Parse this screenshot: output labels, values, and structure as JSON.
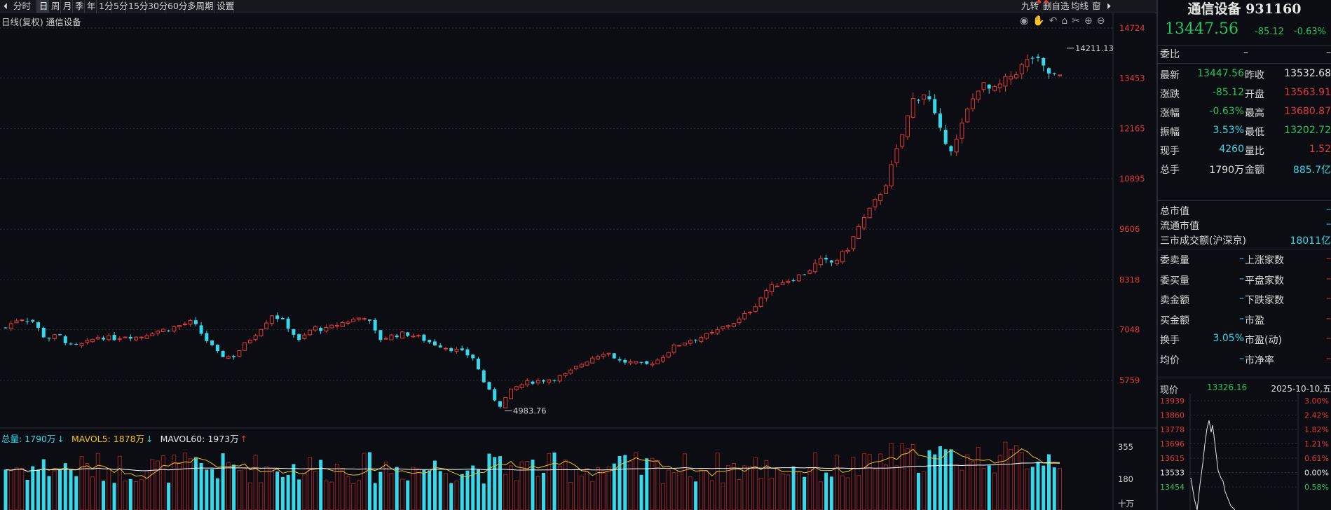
{
  "colors": {
    "up": "#e0393b",
    "down": "#36d8ec",
    "green": "#22c55e",
    "bg": "#0b0d12",
    "grid": "#2b2f38",
    "ma5": "#f0c020",
    "ma60": "#ffffff"
  },
  "toolbar": {
    "periods": [
      "分时",
      "日",
      "周",
      "月",
      "季",
      "年",
      "1分",
      "5分",
      "15分",
      "30分",
      "60分",
      "多周期",
      "设置"
    ],
    "active_period": "日",
    "right_items": [
      "九转",
      "删自选",
      "均线",
      "窗"
    ]
  },
  "chart": {
    "title": "日线(复权)  通信设备",
    "price_axis": [
      "14724",
      "13453",
      "12165",
      "10895",
      "9606",
      "8318",
      "7048",
      "5759"
    ],
    "high_label": "14211.13",
    "low_label": "4983.76",
    "volume_axis": [
      "355",
      "180"
    ],
    "volume_unit": "十万",
    "volume_legend": {
      "total": "总量: 1790万",
      "ma5": "MAVOL5: 1878万",
      "ma60": "MAVOL60: 1973万",
      "arrows": [
        "↓",
        "↓",
        "↑"
      ]
    }
  },
  "chart_data": {
    "type": "candlestick",
    "title": "日线(复权)  通信设备",
    "y_axis_ticks": [
      14724,
      13453,
      12165,
      10895,
      9606,
      8318,
      7048,
      5759
    ],
    "annotated_high": 14211.13,
    "annotated_low": 4983.76,
    "last_close": 13447.56,
    "series": [
      {
        "name": "close",
        "values": [
          7100,
          7350,
          7280,
          6820,
          6900,
          6600,
          6700,
          6880,
          6820,
          6900,
          6850,
          7000,
          7050,
          7150,
          7250,
          6800,
          6400,
          6350,
          6700,
          7050,
          7450,
          7200,
          6750,
          7100,
          7050,
          7200,
          7300,
          7400,
          6800,
          6900,
          6950,
          6850,
          6700,
          6600,
          6500,
          6350,
          5600,
          5100,
          5550,
          5700,
          5750,
          5800,
          5900,
          6150,
          6350,
          6500,
          6250,
          6200,
          6150,
          6300,
          6600,
          6750,
          6850,
          6950,
          7150,
          7300,
          7600,
          8050,
          8250,
          8350,
          8500,
          8800,
          8750,
          9050,
          9700,
          10200,
          10800,
          11800,
          12900,
          13100,
          12100,
          11600,
          12550,
          13300,
          13100,
          13400,
          13700,
          14000,
          13600,
          13447.56
        ]
      }
    ],
    "volume": {
      "unit": "十万",
      "axis_ticks": [
        355,
        180
      ],
      "total": "1790万",
      "ma5": "1878万",
      "ma60": "1973万"
    }
  },
  "panel": {
    "name": "通信设备",
    "code": "931160",
    "price": "13447.56",
    "change": "-85.12",
    "change_pct": "-0.63%",
    "weibi": {
      "label": "委比",
      "v1": "–",
      "v2": "–"
    },
    "rows": [
      {
        "l1": "最新",
        "v1": "13447.56",
        "c1": "down",
        "l2": "昨收",
        "v2": "13532.68",
        "c2": "white"
      },
      {
        "l1": "涨跌",
        "v1": "-85.12",
        "c1": "down",
        "l2": "开盘",
        "v2": "13563.91",
        "c2": "up"
      },
      {
        "l1": "涨幅",
        "v1": "-0.63%",
        "c1": "down",
        "l2": "最高",
        "v2": "13680.87",
        "c2": "up"
      },
      {
        "l1": "振幅",
        "v1": "3.53%",
        "c1": "cyan",
        "l2": "最低",
        "v2": "13202.72",
        "c2": "down"
      },
      {
        "l1": "现手",
        "v1": "4260",
        "c1": "cyan",
        "l2": "量比",
        "v2": "1.52",
        "c2": "up"
      },
      {
        "l1": "总手",
        "v1": "1790万",
        "c1": "white",
        "l2": "金额",
        "v2": "885.7亿",
        "c2": "cyan"
      }
    ],
    "market": [
      {
        "label": "总市值",
        "value": "–"
      },
      {
        "label": "流通市值",
        "value": "–"
      },
      {
        "label": "三市成交额(沪深京)",
        "value": "18011亿"
      }
    ],
    "extra_rows": [
      {
        "l1": "委卖量",
        "v1": "–",
        "l2": "上涨家数",
        "v2": "–"
      },
      {
        "l1": "委买量",
        "v1": "–",
        "l2": "平盘家数",
        "v2": "–"
      },
      {
        "l1": "卖金额",
        "v1": "–",
        "l2": "下跌家数",
        "v2": "–"
      },
      {
        "l1": "买金额",
        "v1": "–",
        "l2": "市盈",
        "v2": "–"
      },
      {
        "l1": "换手",
        "v1": "3.05%",
        "l2": "市盈(动)",
        "v2": "–"
      },
      {
        "l1": "均价",
        "v1": "–",
        "l2": "市净率",
        "v2": "–"
      }
    ],
    "mini": {
      "label": "现价",
      "price": "13326.16",
      "date": "2025-10-10,五",
      "left_axis": [
        "13939",
        "13860",
        "13778",
        "13696",
        "13615",
        "13533",
        "13454"
      ],
      "right_axis": [
        "3.00%",
        "2.42%",
        "1.82%",
        "1.21%",
        "0.61%",
        "0.00%",
        "0.58%"
      ]
    }
  }
}
